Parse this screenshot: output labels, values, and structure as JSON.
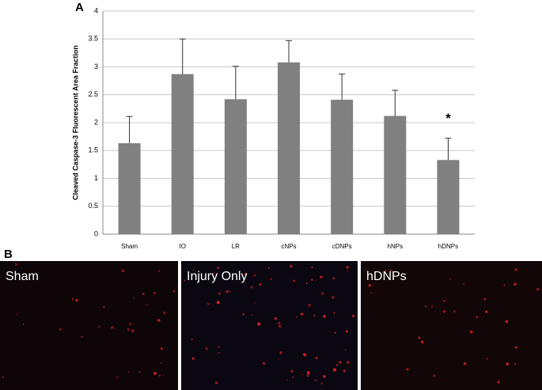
{
  "chart_data": {
    "type": "bar",
    "panel_label": "A",
    "ylabel": "Cleaved Caspase-3 Fluorescent Area Fraction",
    "categories": [
      "Sham",
      "IO",
      "LR",
      "cNPs",
      "cDNPs",
      "hNPs",
      "hDNPs"
    ],
    "values": [
      1.63,
      2.87,
      2.42,
      3.08,
      2.41,
      2.12,
      1.33
    ],
    "errors": [
      0.48,
      0.63,
      0.59,
      0.39,
      0.46,
      0.46,
      0.39
    ],
    "color": "#808080",
    "ylim": [
      0,
      4
    ],
    "yticks": [
      0,
      0.5,
      1,
      1.5,
      2,
      2.5,
      3,
      3.5,
      4
    ],
    "grid": true,
    "annotations": [
      {
        "text": "*",
        "category": "hDNPs"
      }
    ]
  },
  "panel_b": {
    "label": "B",
    "images": [
      {
        "label": "Sham"
      },
      {
        "label": "Injury Only"
      },
      {
        "label": "hDNPs"
      }
    ]
  }
}
